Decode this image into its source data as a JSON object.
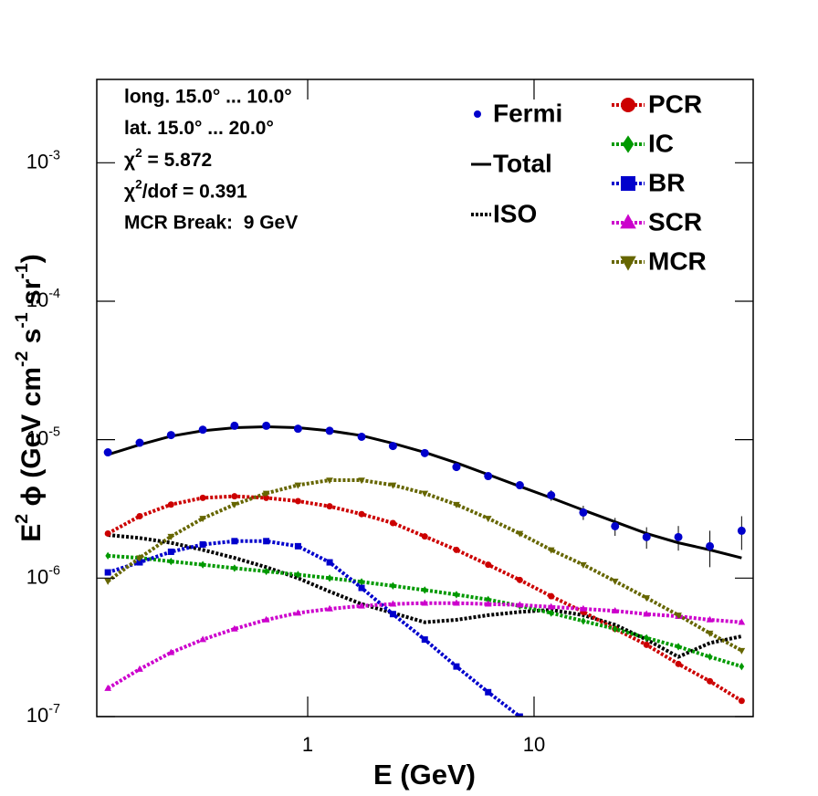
{
  "chart_data": {
    "type": "line",
    "xlabel": "E (GeV)",
    "ylabel": [
      "E",
      "2",
      " ϕ (GeV cm",
      "-2",
      " s",
      "-1",
      " sr",
      "-1",
      ")"
    ],
    "log_x": true,
    "log_y": true,
    "xlim": [
      0.117,
      92.9
    ],
    "ylim": [
      1e-07,
      0.004
    ],
    "xticks": [
      1,
      10
    ],
    "yticks": [
      {
        "value": 1e-07,
        "label": "10",
        "exponent": "-7"
      },
      {
        "value": 1e-06,
        "label": "10",
        "exponent": "-6"
      },
      {
        "value": 1e-05,
        "label": "10",
        "exponent": "-5"
      },
      {
        "value": 0.0001,
        "label": "10",
        "exponent": "-4"
      },
      {
        "value": 0.001,
        "label": "10",
        "exponent": "-3"
      }
    ],
    "annotations": [
      "long. 15.0° ... 10.0°",
      "lat. 15.0° ... 20.0°",
      [
        "χ",
        "2",
        " = 5.872"
      ],
      [
        "χ",
        "2",
        "/dof = 0.391"
      ],
      "MCR Break:  9 GeV"
    ],
    "x": [
      0.131,
      0.181,
      0.249,
      0.344,
      0.475,
      0.656,
      0.906,
      1.25,
      1.73,
      2.38,
      3.29,
      4.54,
      6.27,
      8.65,
      11.9,
      16.5,
      22.8,
      31.4,
      43.4,
      59.8,
      82.6
    ],
    "series": [
      {
        "name": "Fermi",
        "color": "#0000cc",
        "marker": "circle",
        "line": "none",
        "values": [
          8.1e-06,
          9.5e-06,
          1.08e-05,
          1.18e-05,
          1.26e-05,
          1.26e-05,
          1.2e-05,
          1.16e-05,
          1.05e-05,
          9e-06,
          8e-06,
          6.35e-06,
          5.46e-06,
          4.69e-06,
          3.97e-06,
          2.98e-06,
          2.37e-06,
          1.98e-06,
          1.98e-06,
          1.7e-06,
          2.2e-06
        ],
        "errors": [
          2e-07,
          2e-07,
          2e-07,
          2e-07,
          2e-07,
          2e-07,
          2e-07,
          2e-07,
          2e-07,
          2e-07,
          2e-07,
          2e-07,
          2e-07,
          3e-07,
          3.5e-07,
          3.5e-07,
          3.5e-07,
          3.5e-07,
          4e-07,
          5e-07,
          6e-07
        ]
      },
      {
        "name": "Total",
        "color": "#000000",
        "marker": "none",
        "line": "solid",
        "values": [
          7.8e-06,
          9.2e-06,
          1.06e-05,
          1.16e-05,
          1.22e-05,
          1.24e-05,
          1.22e-05,
          1.16e-05,
          1.07e-05,
          9.4e-06,
          8.1e-06,
          6.8e-06,
          5.6e-06,
          4.6e-06,
          3.8e-06,
          3.1e-06,
          2.55e-06,
          2.1e-06,
          1.8e-06,
          1.6e-06,
          1.4e-06
        ]
      },
      {
        "name": "ISO",
        "color": "#000000",
        "marker": "none",
        "line": "dotted",
        "values": [
          2.05e-06,
          1.95e-06,
          1.8e-06,
          1.6e-06,
          1.4e-06,
          1.2e-06,
          1e-06,
          8e-07,
          6.5e-07,
          5.6e-07,
          4.8e-07,
          5e-07,
          5.4e-07,
          5.7e-07,
          5.9e-07,
          5.4e-07,
          4.6e-07,
          3.6e-07,
          2.7e-07,
          3.4e-07,
          3.8e-07
        ]
      },
      {
        "name": "PCR",
        "color": "#cc0000",
        "marker": "circle",
        "line": "dotted",
        "values": [
          2.1e-06,
          2.8e-06,
          3.4e-06,
          3.8e-06,
          3.9e-06,
          3.8e-06,
          3.6e-06,
          3.3e-06,
          2.9e-06,
          2.5e-06,
          2e-06,
          1.6e-06,
          1.25e-06,
          9.7e-07,
          7.4e-07,
          5.7e-07,
          4.3e-07,
          3.3e-07,
          2.4e-07,
          1.8e-07,
          1.3e-07
        ]
      },
      {
        "name": "IC",
        "color": "#009900",
        "marker": "diamond",
        "line": "dotted",
        "values": [
          1.45e-06,
          1.4e-06,
          1.32e-06,
          1.25e-06,
          1.18e-06,
          1.12e-06,
          1.06e-06,
          1e-06,
          9.4e-07,
          8.8e-07,
          8.2e-07,
          7.6e-07,
          7e-07,
          6.3e-07,
          5.6e-07,
          4.9e-07,
          4.3e-07,
          3.7e-07,
          3.2e-07,
          2.7e-07,
          2.3e-07
        ]
      },
      {
        "name": "BR",
        "color": "#0000cc",
        "marker": "square",
        "line": "dotted",
        "values": [
          1.1e-06,
          1.3e-06,
          1.55e-06,
          1.75e-06,
          1.85e-06,
          1.85e-06,
          1.7e-06,
          1.3e-06,
          8.5e-07,
          5.5e-07,
          3.6e-07,
          2.3e-07,
          1.5e-07,
          1e-07,
          null,
          null,
          null,
          null,
          null,
          null,
          null
        ]
      },
      {
        "name": "SCR",
        "color": "#cc00cc",
        "marker": "triangle",
        "line": "dotted",
        "values": [
          1.6e-07,
          2.2e-07,
          2.9e-07,
          3.6e-07,
          4.3e-07,
          5e-07,
          5.6e-07,
          6e-07,
          6.3e-07,
          6.5e-07,
          6.6e-07,
          6.6e-07,
          6.5e-07,
          6.4e-07,
          6.2e-07,
          6e-07,
          5.8e-07,
          5.5e-07,
          5.3e-07,
          5e-07,
          4.8e-07
        ]
      },
      {
        "name": "MCR",
        "color": "#666600",
        "marker": "triangle-down",
        "line": "dotted",
        "values": [
          9.5e-07,
          1.4e-06,
          2e-06,
          2.7e-06,
          3.4e-06,
          4.1e-06,
          4.7e-06,
          5.1e-06,
          5.1e-06,
          4.7e-06,
          4.1e-06,
          3.4e-06,
          2.7e-06,
          2.1e-06,
          1.6e-06,
          1.25e-06,
          9.5e-07,
          7.2e-07,
          5.4e-07,
          4e-07,
          3e-07
        ]
      }
    ]
  }
}
